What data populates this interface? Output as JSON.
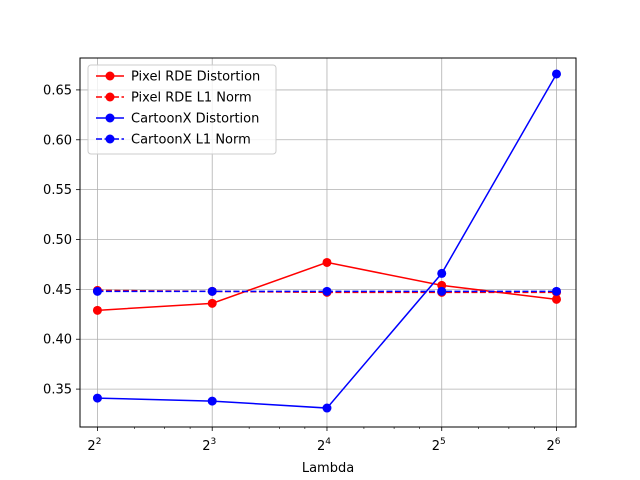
{
  "chart_data": {
    "type": "line",
    "xlabel": "Lambda",
    "ylabel": "",
    "title": "",
    "x_scale": "log2",
    "x": [
      4,
      8,
      16,
      32,
      64
    ],
    "x_tick_labels": [
      {
        "base": "2",
        "exp": "2"
      },
      {
        "base": "2",
        "exp": "3"
      },
      {
        "base": "2",
        "exp": "4"
      },
      {
        "base": "2",
        "exp": "5"
      },
      {
        "base": "2",
        "exp": "6"
      }
    ],
    "xlim": [
      3.6,
      72
    ],
    "ylim": [
      0.312,
      0.682
    ],
    "y_ticks": [
      0.35,
      0.4,
      0.45,
      0.5,
      0.55,
      0.6,
      0.65
    ],
    "y_tick_labels": [
      "0.35",
      "0.40",
      "0.45",
      "0.50",
      "0.55",
      "0.60",
      "0.65"
    ],
    "grid": true,
    "legend_position": "top-left",
    "series": [
      {
        "name": "Pixel RDE Distortion",
        "color": "#ff0000",
        "dash": "solid",
        "marker": "circle",
        "values": [
          0.429,
          0.436,
          0.477,
          0.454,
          0.44
        ]
      },
      {
        "name": "Pixel RDE L1 Norm",
        "color": "#ff0000",
        "dash": "dashed",
        "marker": "circle",
        "values": [
          0.449,
          0.448,
          0.447,
          0.447,
          0.447
        ]
      },
      {
        "name": "CartoonX Distortion",
        "color": "#0000ff",
        "dash": "solid",
        "marker": "circle",
        "values": [
          0.341,
          0.338,
          0.331,
          0.466,
          0.666
        ]
      },
      {
        "name": "CartoonX L1 Norm",
        "color": "#0000ff",
        "dash": "dashed",
        "marker": "circle",
        "values": [
          0.448,
          0.448,
          0.448,
          0.448,
          0.448
        ]
      }
    ]
  }
}
